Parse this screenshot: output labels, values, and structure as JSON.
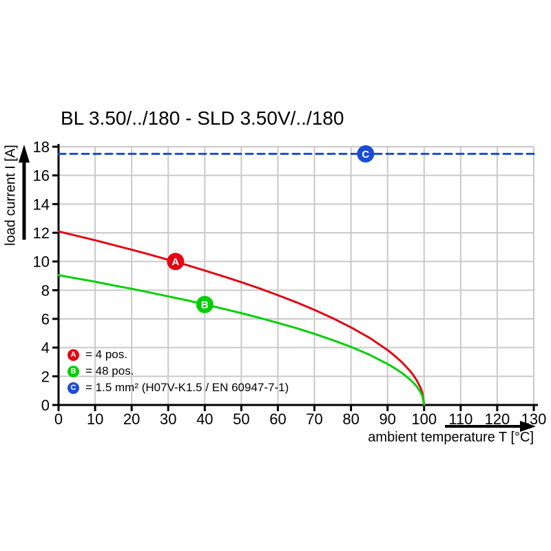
{
  "chart_data": {
    "type": "line",
    "title": "BL 3.50/../180 - SLD 3.50V/../180",
    "xlabel": "ambient temperature T [°C]",
    "ylabel": "load current I [A]",
    "xlim": [
      0,
      130
    ],
    "ylim": [
      0,
      18
    ],
    "xticks": [
      0,
      10,
      20,
      30,
      40,
      50,
      60,
      70,
      80,
      90,
      100,
      110,
      120,
      130
    ],
    "yticks": [
      0,
      2,
      4,
      6,
      8,
      10,
      12,
      14,
      16,
      18
    ],
    "grid": true,
    "grid_color": "#c9c9c9",
    "axis_color": "#000000",
    "legend_position": "inside-bottom-left",
    "series": [
      {
        "name": "A",
        "legend_label": "= 4 pos.",
        "color": "#e30613",
        "style": "solid",
        "points": [
          [
            0,
            12.1
          ],
          [
            5,
            11.79
          ],
          [
            10,
            11.48
          ],
          [
            15,
            11.15
          ],
          [
            20,
            10.82
          ],
          [
            25,
            10.48
          ],
          [
            30,
            10.12
          ],
          [
            35,
            9.76
          ],
          [
            40,
            9.37
          ],
          [
            45,
            8.97
          ],
          [
            50,
            8.56
          ],
          [
            55,
            8.12
          ],
          [
            60,
            7.65
          ],
          [
            65,
            7.16
          ],
          [
            70,
            6.63
          ],
          [
            75,
            6.05
          ],
          [
            80,
            5.41
          ],
          [
            85,
            4.69
          ],
          [
            90,
            3.83
          ],
          [
            92,
            3.42
          ],
          [
            94,
            2.96
          ],
          [
            96,
            2.42
          ],
          [
            97,
            2.1
          ],
          [
            98,
            1.71
          ],
          [
            99,
            1.21
          ],
          [
            99.5,
            0.86
          ],
          [
            100,
            0
          ]
        ],
        "marker": {
          "x": 32,
          "y": 10.0
        }
      },
      {
        "name": "B",
        "legend_label": "= 48 pos.",
        "color": "#00d000",
        "style": "solid",
        "points": [
          [
            0,
            9.05
          ],
          [
            5,
            8.82
          ],
          [
            10,
            8.59
          ],
          [
            15,
            8.34
          ],
          [
            20,
            8.1
          ],
          [
            25,
            7.84
          ],
          [
            30,
            7.57
          ],
          [
            35,
            7.3
          ],
          [
            40,
            7.01
          ],
          [
            45,
            6.71
          ],
          [
            50,
            6.4
          ],
          [
            55,
            6.07
          ],
          [
            60,
            5.72
          ],
          [
            65,
            5.36
          ],
          [
            70,
            4.96
          ],
          [
            75,
            4.52
          ],
          [
            80,
            4.05
          ],
          [
            85,
            3.51
          ],
          [
            90,
            2.86
          ],
          [
            92,
            2.56
          ],
          [
            94,
            2.22
          ],
          [
            96,
            1.81
          ],
          [
            97,
            1.57
          ],
          [
            98,
            1.28
          ],
          [
            99,
            0.9
          ],
          [
            99.5,
            0.64
          ],
          [
            100,
            0
          ]
        ],
        "marker": {
          "x": 40,
          "y": 7.0
        }
      },
      {
        "name": "C",
        "legend_label": "= 1.5 mm² (H07V-K1.5 / EN 60947-7-1)",
        "color": "#1a4dd5",
        "style": "dashed",
        "points": [
          [
            0,
            17.5
          ],
          [
            130,
            17.5
          ]
        ],
        "marker": {
          "x": 84,
          "y": 17.5
        }
      }
    ]
  }
}
